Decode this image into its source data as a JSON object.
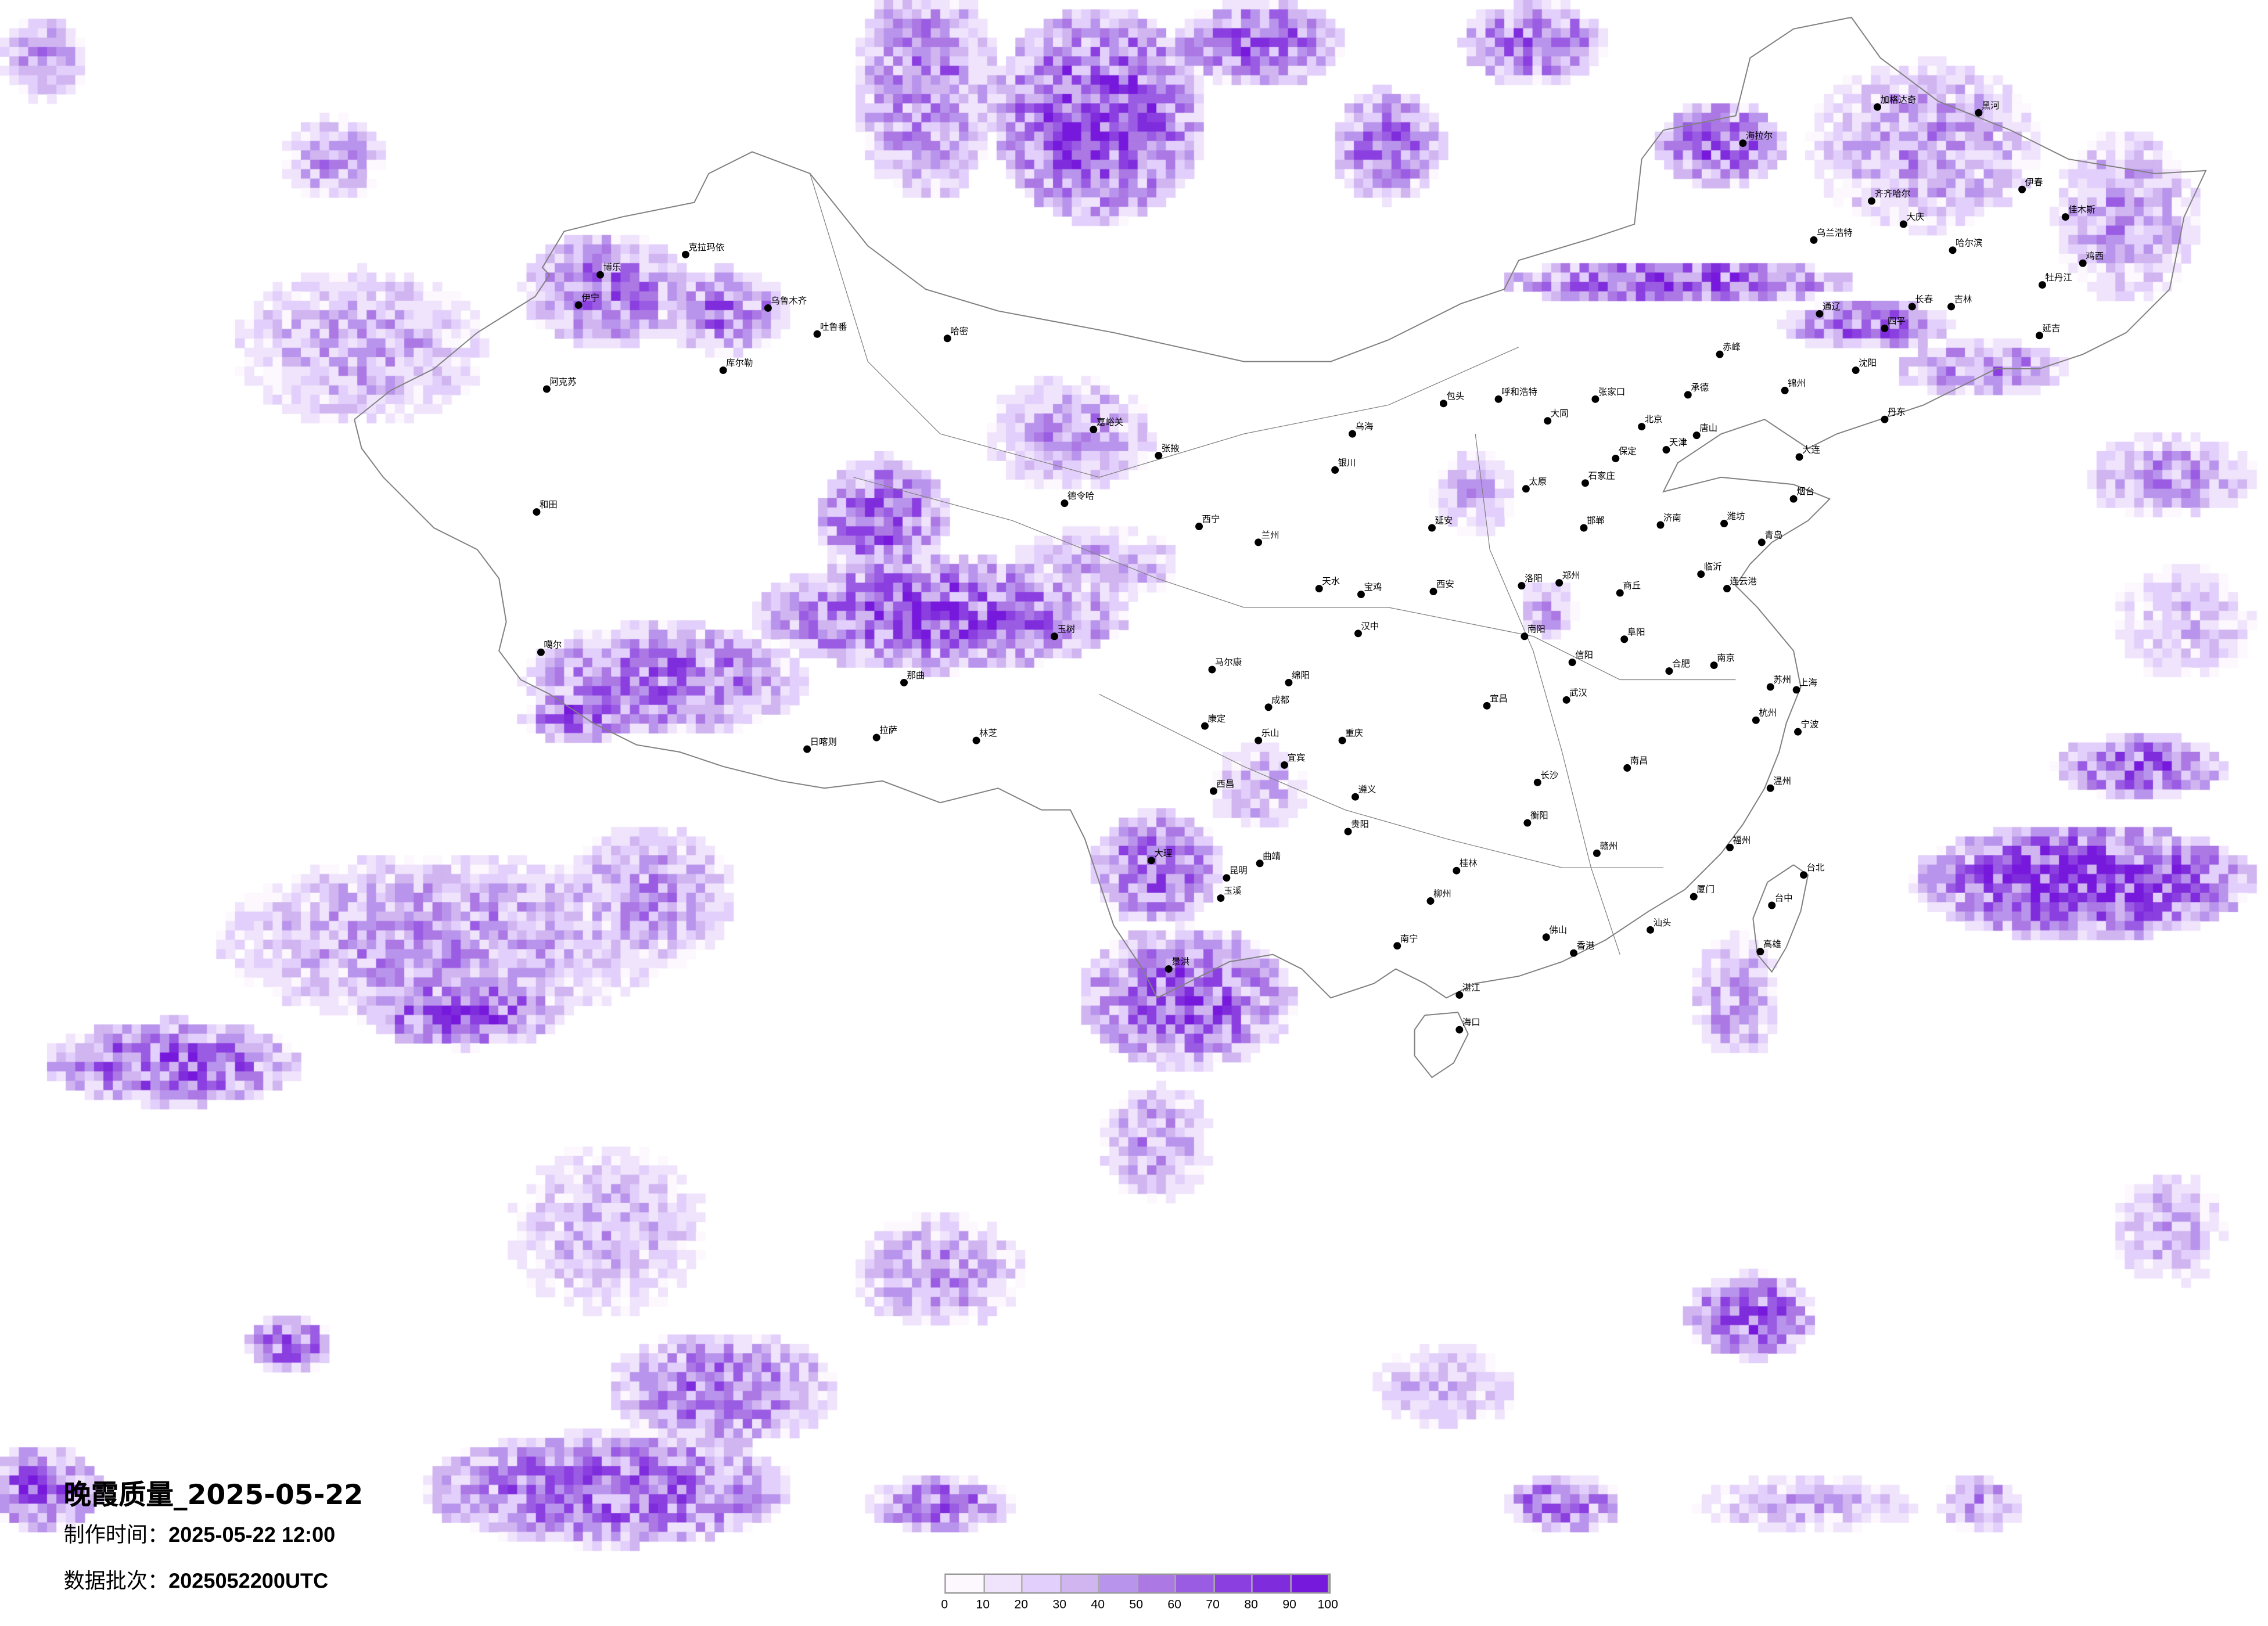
{
  "title": "晚霞质量_2025-05-22",
  "production_time": {
    "label": "制作时间：",
    "value": "2025-05-22 12:00"
  },
  "data_batch": {
    "label": "数据批次：",
    "value": "2025052200UTC"
  },
  "legend": {
    "ticks": [
      "0",
      "10",
      "20",
      "30",
      "40",
      "50",
      "60",
      "70",
      "80",
      "90",
      "100"
    ],
    "colors": [
      "#fcf8fd",
      "#efe4fb",
      "#e2cffb",
      "#d0b5f0",
      "#b994ec",
      "#ab78e4",
      "#9b5ce4",
      "#8b3fe0",
      "#7f2cdc",
      "#7719dc"
    ]
  },
  "border_color": "#808080",
  "cities": [
    "北京",
    "天津",
    "石家庄",
    "太原",
    "济南",
    "青岛",
    "郑州",
    "大连",
    "呼和浩特",
    "包头",
    "张家口",
    "唐山",
    "保定",
    "合肥",
    "南京",
    "上海",
    "苏州",
    "洛阳",
    "西安",
    "延安",
    "烟台",
    "连云港",
    "南阳",
    "沈阳",
    "锦州",
    "丹东",
    "大同",
    "承德",
    "商丘",
    "临沂",
    "潍坊",
    "邯郸",
    "阜阳",
    "信阳",
    "武汉",
    "长沙",
    "南昌",
    "杭州",
    "福州",
    "厦门",
    "佛山",
    "香港",
    "南宁",
    "海口",
    "桂林",
    "台北",
    "高雄",
    "宜昌",
    "衡阳",
    "赣州",
    "汕头",
    "台中",
    "宁波",
    "温州",
    "柳州",
    "湛江",
    "克拉玛依",
    "博乐",
    "伊宁",
    "乌鲁木齐",
    "吐鲁番",
    "哈密",
    "库尔勒",
    "阿克苏",
    "和田",
    "噶尔",
    "日喀则",
    "拉萨",
    "那曲",
    "林芝",
    "玉树",
    "德令哈",
    "嘉峪关",
    "兰州",
    "西宁",
    "银川",
    "成都",
    "重庆",
    "贵阳",
    "昆明",
    "大理",
    "西昌",
    "汉中",
    "张掖",
    "遵义",
    "景洪",
    "绵阳",
    "天水",
    "宝鸡",
    "乌海",
    "玉溪",
    "曲靖",
    "乐山",
    "宜宾",
    "马尔康",
    "康定",
    "加格达奇",
    "黑河",
    "海拉尔",
    "齐齐哈尔",
    "大庆",
    "哈尔滨",
    "伊春",
    "佳木斯",
    "牡丹江",
    "长春",
    "吉林",
    "延吉",
    "通辽",
    "乌兰浩特",
    "赤峰",
    "鸡西",
    "四平"
  ]
}
